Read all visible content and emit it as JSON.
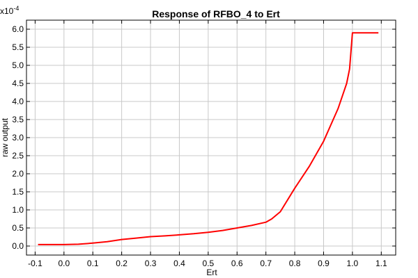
{
  "chart_data": {
    "type": "line",
    "title": "Response of RFBO_4 to Ert",
    "xlabel": "Ert",
    "ylabel": "raw output",
    "y_multiplier_base": "x10",
    "y_multiplier_exp": "-4",
    "xlim": [
      -0.13,
      1.15
    ],
    "ylim": [
      -0.25,
      6.25
    ],
    "xticks": [
      -0.1,
      0.0,
      0.1,
      0.2,
      0.3,
      0.4,
      0.5,
      0.6,
      0.7,
      0.8,
      0.9,
      1.0,
      1.1
    ],
    "xtick_labels": [
      "-0.1",
      "0.0",
      "0.1",
      "0.2",
      "0.3",
      "0.4",
      "0.5",
      "0.6",
      "0.7",
      "0.8",
      "0.9",
      "1.0",
      "1.1"
    ],
    "yticks": [
      0.0,
      0.5,
      1.0,
      1.5,
      2.0,
      2.5,
      3.0,
      3.5,
      4.0,
      4.5,
      5.0,
      5.5,
      6.0
    ],
    "ytick_labels": [
      "0.0",
      "0.5",
      "1.0",
      "1.5",
      "2.0",
      "2.5",
      "3.0",
      "3.5",
      "4.0",
      "4.5",
      "5.0",
      "5.5",
      "6.0"
    ],
    "grid": true,
    "series": [
      {
        "color": "#ff0000",
        "x": [
          -0.09,
          0.0,
          0.05,
          0.1,
          0.15,
          0.2,
          0.25,
          0.3,
          0.35,
          0.4,
          0.45,
          0.5,
          0.55,
          0.6,
          0.65,
          0.7,
          0.72,
          0.75,
          0.8,
          0.85,
          0.9,
          0.95,
          0.98,
          0.99,
          1.0,
          1.05,
          1.09
        ],
        "y": [
          0.04,
          0.04,
          0.05,
          0.08,
          0.12,
          0.18,
          0.22,
          0.26,
          0.28,
          0.31,
          0.34,
          0.38,
          0.43,
          0.5,
          0.57,
          0.66,
          0.75,
          0.95,
          1.6,
          2.2,
          2.9,
          3.8,
          4.5,
          4.9,
          5.9,
          5.9,
          5.9
        ]
      }
    ]
  }
}
